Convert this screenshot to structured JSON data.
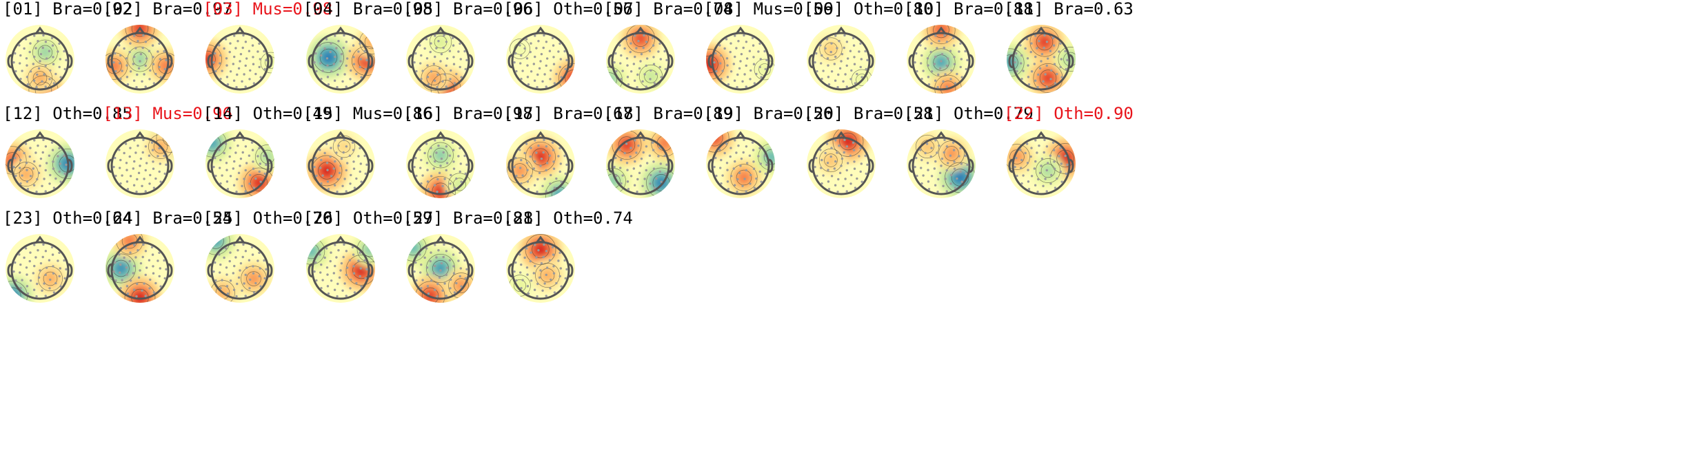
{
  "colors": {
    "normal_label": "#000000",
    "flagged_label": "#e8141b",
    "colormap": [
      "#2c7bb6",
      "#4fb0b8",
      "#abdda4",
      "#e6f598",
      "#ffffbf",
      "#fee08b",
      "#fdae61",
      "#f46d43",
      "#d7191c"
    ],
    "head_outline": "#555555",
    "sensor": "#9a9a9a"
  },
  "components": [
    {
      "label": "[01] Bra=0.92",
      "flagged": false,
      "blobs": [
        {
          "s": -0.55,
          "dx": 0.15,
          "dy": -0.2
        },
        {
          "s": 0.9,
          "dx": 0.1,
          "dy": 0.9
        },
        {
          "s": 0.5,
          "dx": 0.0,
          "dy": 0.55
        }
      ]
    },
    {
      "label": "[02] Bra=0.97",
      "flagged": false,
      "blobs": [
        {
          "s": -0.55,
          "dx": 0.0,
          "dy": 0.0
        },
        {
          "s": 0.9,
          "dx": 0.0,
          "dy": -0.9
        },
        {
          "s": 0.7,
          "dx": -0.75,
          "dy": 0.2
        },
        {
          "s": 0.7,
          "dx": 0.75,
          "dy": 0.2
        }
      ]
    },
    {
      "label": "[03] Mus=0.98",
      "flagged": true,
      "blobs": [
        {
          "s": 0.9,
          "dx": -0.95,
          "dy": 0.0
        },
        {
          "s": -0.2,
          "dx": 0.9,
          "dy": 0.1
        }
      ]
    },
    {
      "label": "[04] Bra=0.98",
      "flagged": false,
      "blobs": [
        {
          "s": -1.0,
          "dx": -0.35,
          "dy": -0.05
        },
        {
          "s": 0.9,
          "dx": 0.75,
          "dy": 0.05
        },
        {
          "s": 0.5,
          "dx": 0.9,
          "dy": -0.5
        }
      ]
    },
    {
      "label": "[05] Bra=0.96",
      "flagged": false,
      "blobs": [
        {
          "s": 0.95,
          "dx": 0.15,
          "dy": 0.85
        },
        {
          "s": 0.55,
          "dx": -0.2,
          "dy": 0.55
        },
        {
          "s": -0.3,
          "dx": 0.0,
          "dy": -0.5
        }
      ]
    },
    {
      "label": "[06] Oth=0.56",
      "flagged": false,
      "blobs": [
        {
          "s": 0.9,
          "dx": 0.95,
          "dy": 0.55
        },
        {
          "s": -0.15,
          "dx": -0.6,
          "dy": -0.3
        }
      ]
    },
    {
      "label": "[07] Bra=0.74",
      "flagged": false,
      "blobs": [
        {
          "s": 0.85,
          "dx": 0.0,
          "dy": -0.6
        },
        {
          "s": -0.6,
          "dx": -0.9,
          "dy": 0.6
        },
        {
          "s": -0.4,
          "dx": 0.3,
          "dy": 0.5
        }
      ]
    },
    {
      "label": "[08] Mus=0.56",
      "flagged": false,
      "blobs": [
        {
          "s": 1.0,
          "dx": -0.9,
          "dy": 0.15
        },
        {
          "s": -0.2,
          "dx": 0.7,
          "dy": 0.3
        }
      ]
    },
    {
      "label": "[09] Oth=0.80",
      "flagged": false,
      "blobs": [
        {
          "s": 0.35,
          "dx": -0.3,
          "dy": -0.3
        },
        {
          "s": -0.2,
          "dx": 0.6,
          "dy": 0.6
        }
      ]
    },
    {
      "label": "[10] Bra=0.88",
      "flagged": false,
      "blobs": [
        {
          "s": -0.8,
          "dx": 0.0,
          "dy": 0.1
        },
        {
          "s": 0.8,
          "dx": 0.0,
          "dy": -0.85
        },
        {
          "s": 0.7,
          "dx": 0.2,
          "dy": 0.85
        }
      ]
    },
    {
      "label": "[11] Bra=0.63",
      "flagged": false,
      "blobs": [
        {
          "s": 0.9,
          "dx": 0.1,
          "dy": -0.5
        },
        {
          "s": 0.9,
          "dx": 0.2,
          "dy": 0.55
        },
        {
          "s": -0.8,
          "dx": -0.9,
          "dy": 0.1
        },
        {
          "s": -0.5,
          "dx": 0.85,
          "dy": 0.0
        }
      ]
    },
    {
      "label": "[12] Oth=0.85",
      "flagged": false,
      "blobs": [
        {
          "s": -0.95,
          "dx": 0.8,
          "dy": 0.0
        },
        {
          "s": 0.8,
          "dx": -0.8,
          "dy": -0.1
        },
        {
          "s": 0.5,
          "dx": -0.4,
          "dy": 0.3
        }
      ]
    },
    {
      "label": "[13] Mus=0.96",
      "flagged": true,
      "blobs": [
        {
          "s": -0.9,
          "dx": 0.9,
          "dy": -0.75
        },
        {
          "s": 0.5,
          "dx": 0.6,
          "dy": -0.5
        }
      ]
    },
    {
      "label": "[14] Oth=0.49",
      "flagged": false,
      "blobs": [
        {
          "s": 0.95,
          "dx": 0.55,
          "dy": 0.55
        },
        {
          "s": -0.8,
          "dx": -0.8,
          "dy": -0.6
        },
        {
          "s": -0.5,
          "dx": 0.8,
          "dy": -0.2
        }
      ]
    },
    {
      "label": "[15] Mus=0.86",
      "flagged": false,
      "blobs": [
        {
          "s": 1.0,
          "dx": -0.4,
          "dy": 0.2
        },
        {
          "s": 0.3,
          "dx": 0.1,
          "dy": -0.5
        }
      ]
    },
    {
      "label": "[16] Bra=0.98",
      "flagged": false,
      "blobs": [
        {
          "s": 0.95,
          "dx": 0.0,
          "dy": 0.8
        },
        {
          "s": -0.6,
          "dx": 0.0,
          "dy": -0.25
        },
        {
          "s": -0.35,
          "dx": 0.55,
          "dy": 0.6
        }
      ]
    },
    {
      "label": "[17] Bra=0.67",
      "flagged": false,
      "blobs": [
        {
          "s": 0.95,
          "dx": 0.0,
          "dy": -0.2
        },
        {
          "s": -0.8,
          "dx": 0.55,
          "dy": 0.9
        },
        {
          "s": 0.6,
          "dx": -0.6,
          "dy": 0.2
        }
      ]
    },
    {
      "label": "[18] Bra=0.89",
      "flagged": false,
      "blobs": [
        {
          "s": 0.9,
          "dx": -0.4,
          "dy": -0.55
        },
        {
          "s": -0.95,
          "dx": 0.6,
          "dy": 0.55
        },
        {
          "s": -0.6,
          "dx": -0.8,
          "dy": 0.5
        },
        {
          "s": 0.7,
          "dx": 0.7,
          "dy": -0.6
        }
      ]
    },
    {
      "label": "[19] Bra=0.56",
      "flagged": false,
      "blobs": [
        {
          "s": 0.85,
          "dx": -0.75,
          "dy": -0.75
        },
        {
          "s": 0.7,
          "dx": 0.1,
          "dy": 0.4
        },
        {
          "s": -0.7,
          "dx": 0.9,
          "dy": -0.2
        }
      ]
    },
    {
      "label": "[20] Bra=0.58",
      "flagged": false,
      "blobs": [
        {
          "s": 1.0,
          "dx": 0.2,
          "dy": -0.65
        },
        {
          "s": 0.4,
          "dx": -0.3,
          "dy": -0.1
        }
      ]
    },
    {
      "label": "[21] Oth=0.79",
      "flagged": false,
      "blobs": [
        {
          "s": -1.0,
          "dx": 0.55,
          "dy": 0.4
        },
        {
          "s": 0.6,
          "dx": 0.3,
          "dy": -0.3
        },
        {
          "s": 0.4,
          "dx": -0.4,
          "dy": -0.5
        }
      ]
    },
    {
      "label": "[22] Oth=0.90",
      "flagged": true,
      "blobs": [
        {
          "s": 1.0,
          "dx": 0.7,
          "dy": -0.15
        },
        {
          "s": -0.5,
          "dx": 0.2,
          "dy": 0.2
        },
        {
          "s": 0.6,
          "dx": -0.7,
          "dy": -0.2
        }
      ]
    },
    {
      "label": "[23] Oth=0.64",
      "flagged": false,
      "blobs": [
        {
          "s": -0.95,
          "dx": -0.8,
          "dy": 0.8
        },
        {
          "s": 0.5,
          "dx": 0.3,
          "dy": 0.3
        }
      ]
    },
    {
      "label": "[24] Bra=0.54",
      "flagged": false,
      "blobs": [
        {
          "s": -0.9,
          "dx": -0.55,
          "dy": 0.0
        },
        {
          "s": 1.0,
          "dx": 0.0,
          "dy": 0.85
        },
        {
          "s": 0.7,
          "dx": -0.3,
          "dy": -0.8
        }
      ]
    },
    {
      "label": "[25] Oth=0.70",
      "flagged": false,
      "blobs": [
        {
          "s": -0.8,
          "dx": -0.7,
          "dy": -0.8
        },
        {
          "s": 0.6,
          "dx": 0.4,
          "dy": 0.3
        },
        {
          "s": 0.5,
          "dx": -0.5,
          "dy": 0.7
        }
      ]
    },
    {
      "label": "[26] Oth=0.59",
      "flagged": false,
      "blobs": [
        {
          "s": 1.0,
          "dx": 0.6,
          "dy": 0.05
        },
        {
          "s": -0.7,
          "dx": -0.85,
          "dy": -0.5
        },
        {
          "s": -0.6,
          "dx": 0.85,
          "dy": -0.55
        }
      ]
    },
    {
      "label": "[27] Bra=0.81",
      "flagged": false,
      "blobs": [
        {
          "s": -0.85,
          "dx": 0.0,
          "dy": 0.0
        },
        {
          "s": 0.9,
          "dx": -0.3,
          "dy": 0.8
        },
        {
          "s": -0.7,
          "dx": -0.8,
          "dy": -0.6
        },
        {
          "s": 0.6,
          "dx": 0.6,
          "dy": 0.5
        }
      ]
    },
    {
      "label": "[28] Oth=0.74",
      "flagged": false,
      "blobs": [
        {
          "s": 1.0,
          "dx": 0.0,
          "dy": -0.55
        },
        {
          "s": 0.5,
          "dx": 0.2,
          "dy": 0.2
        },
        {
          "s": -0.25,
          "dx": -0.6,
          "dy": 0.5
        }
      ]
    }
  ]
}
